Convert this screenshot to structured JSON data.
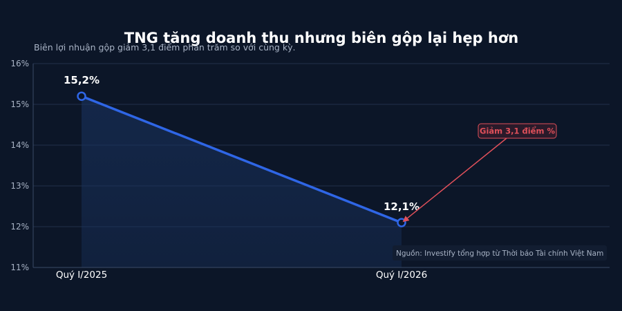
{
  "chart_data": {
    "type": "line",
    "title": "TNG tăng doanh thu nhưng biên gộp lại hẹp hơn",
    "subtitle": "Biên lợi nhuận gộp giảm 3,1 điểm phần trăm so với cùng kỳ.",
    "categories": [
      "Quý I/2025",
      "Quý I/2026"
    ],
    "series": [
      {
        "values": [
          15.2,
          12.1
        ]
      }
    ],
    "data_labels": [
      "15,2%",
      "12,1%"
    ],
    "y_ticks": [
      {
        "value": 11,
        "label": "11%"
      },
      {
        "value": 12,
        "label": "12%"
      },
      {
        "value": 13,
        "label": "13%"
      },
      {
        "value": 14,
        "label": "14%"
      },
      {
        "value": 15,
        "label": "15%"
      },
      {
        "value": 16,
        "label": "16%"
      }
    ],
    "ylim": [
      11,
      16
    ],
    "xlabel": "",
    "ylabel": "",
    "grid": true,
    "annotation": {
      "text": "Giảm 3,1 điểm %",
      "target_index": 1
    },
    "source": "Nguồn: Investify tổng hợp từ Thời báo Tài chính Việt Nam",
    "colors": {
      "background": "#0c1628",
      "line": "#2f66e6",
      "annotation": "#e0505a",
      "grid": "#22304a",
      "text": "#ffffff",
      "muted": "#a8b3c5"
    }
  }
}
